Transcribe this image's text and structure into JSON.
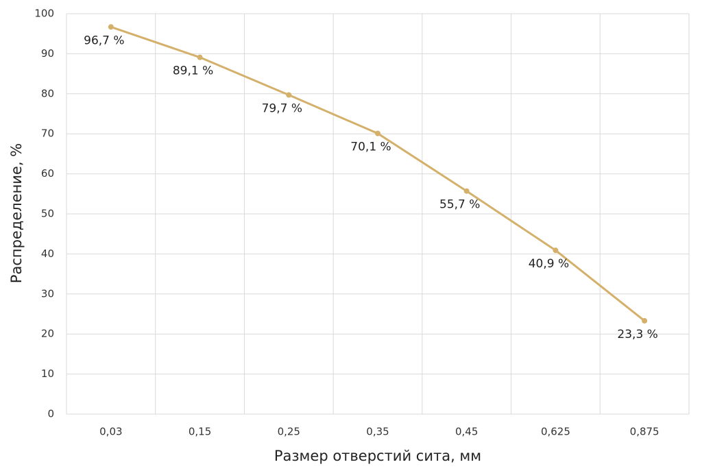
{
  "chart_data": {
    "type": "line",
    "categories": [
      "0,03",
      "0,15",
      "0,25",
      "0,35",
      "0,45",
      "0,625",
      "0,875"
    ],
    "values": [
      96.7,
      89.1,
      79.7,
      70.1,
      55.7,
      40.9,
      23.3
    ],
    "value_labels": [
      "96,7 %",
      "89,1 %",
      "79,7 %",
      "70,1 %",
      "55,7 %",
      "40,9 %",
      "23,3 %"
    ],
    "color": "#d4b06a",
    "x_label": "Размер отверстий сита, мм",
    "y_label": "Распределение, %",
    "ylim": [
      0,
      100
    ],
    "yticks": [
      0,
      10,
      20,
      30,
      40,
      50,
      60,
      70,
      80,
      90,
      100
    ],
    "grid": true
  }
}
